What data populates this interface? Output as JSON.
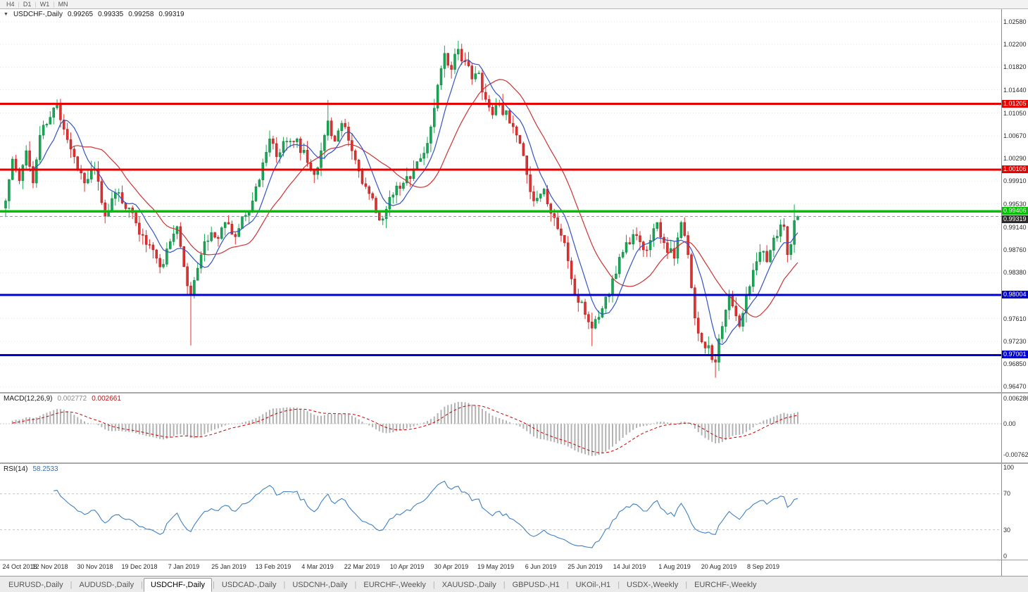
{
  "toolbar": {
    "timeframes": [
      "H4",
      "D1",
      "W1",
      "MN"
    ],
    "separator": "|"
  },
  "chart": {
    "title": {
      "collapse_icon": "▼",
      "symbol": "USDCHF-,Daily",
      "open": "0.99265",
      "high": "0.99335",
      "low": "0.99258",
      "close": "0.99319"
    },
    "price_axis_ticks": [
      "1.02580",
      "1.02200",
      "1.01820",
      "1.01440",
      "1.01050",
      "1.00670",
      "1.00290",
      "0.99910",
      "0.99530",
      "0.99140",
      "0.98760",
      "0.98380",
      "0.97610",
      "0.97230",
      "0.96850",
      "0.96470"
    ],
    "levels": [
      {
        "label": "1.01205",
        "price": 1.01205,
        "color": "#e80000",
        "type": "resistance"
      },
      {
        "label": "1.00106",
        "price": 1.00106,
        "color": "#e80000",
        "type": "resistance"
      },
      {
        "label": "0.99406",
        "price": 0.99406,
        "color": "#00c000",
        "type": "pivot"
      },
      {
        "label": "0.98004",
        "price": 0.98004,
        "color": "#0000cc",
        "type": "support"
      },
      {
        "label": "0.97001",
        "price": 0.97001,
        "color": "#0000cc",
        "type": "support"
      }
    ],
    "current_price": {
      "label": "0.99319",
      "price": 0.99319
    }
  },
  "macd": {
    "title": "MACD(12,26,9)",
    "value_main": "0.002772",
    "value_signal": "0.002661",
    "axis_labels": [
      "0.006286",
      "0.00",
      "-0.00762"
    ],
    "axis_values": [
      0.006286,
      0,
      -0.00762
    ]
  },
  "rsi": {
    "title": "RSI(14)",
    "value": "58.2533",
    "axis_labels": [
      "100",
      "70",
      "30",
      "0"
    ],
    "axis_values": [
      100,
      70,
      30,
      0
    ],
    "guide_levels": [
      70,
      30
    ]
  },
  "tabs": {
    "separator": "|",
    "active_index": 2,
    "items": [
      "EURUSD-,Daily",
      "AUDUSD-,Daily",
      "USDCHF-,Daily",
      "USDCAD-,Daily",
      "USDCNH-,Daily",
      "EURCHF-,Weekly",
      "XAUUSD-,Daily",
      "GBPUSD-,H1",
      "UKOil-,H1",
      "USDX-,Weekly",
      "EURCHF-,Weekly"
    ]
  },
  "chart_data": {
    "type": "candlestick",
    "title": "USDCHF-,Daily",
    "ylim": [
      0.9638,
      1.0279
    ],
    "candle_count": 232,
    "candles_per_label": 13,
    "x_date_labels": [
      "24 Oct 2018",
      "12 Nov 2018",
      "30 Nov 2018",
      "19 Dec 2018",
      "7 Jan 2019",
      "25 Jan 2019",
      "13 Feb 2019",
      "4 Mar 2019",
      "22 Mar 2019",
      "10 Apr 2019",
      "30 Apr 2019",
      "19 May 2019",
      "6 Jun 2019",
      "25 Jun 2019",
      "14 Jul 2019",
      "1 Aug 2019",
      "20 Aug 2019",
      "8 Sep 2019"
    ],
    "anchors_close": [
      [
        0,
        0.9958
      ],
      [
        2,
        1.0028
      ],
      [
        4,
        0.9992
      ],
      [
        6,
        1.0042
      ],
      [
        8,
        0.9988
      ],
      [
        10,
        1.0068
      ],
      [
        13,
        1.0098
      ],
      [
        15,
        1.0122
      ],
      [
        17,
        1.0078
      ],
      [
        20,
        1.0032
      ],
      [
        23,
        0.9988
      ],
      [
        26,
        1.0012
      ],
      [
        29,
        0.9932
      ],
      [
        31,
        0.9962
      ],
      [
        33,
        0.9972
      ],
      [
        35,
        0.9945
      ],
      [
        37,
        0.9938
      ],
      [
        39,
        0.9902
      ],
      [
        41,
        0.9885
      ],
      [
        44,
        0.9862
      ],
      [
        46,
        0.9852
      ],
      [
        48,
        0.989
      ],
      [
        50,
        0.9915
      ],
      [
        52,
        0.9848
      ],
      [
        54,
        0.98
      ],
      [
        55,
        0.9825
      ],
      [
        57,
        0.9868
      ],
      [
        60,
        0.9905
      ],
      [
        62,
        0.9895
      ],
      [
        64,
        0.9922
      ],
      [
        67,
        0.9898
      ],
      [
        69,
        0.9932
      ],
      [
        72,
        0.9958
      ],
      [
        75,
        1.0022
      ],
      [
        77,
        1.0062
      ],
      [
        79,
        1.0032
      ],
      [
        82,
        1.0058
      ],
      [
        85,
        1.0062
      ],
      [
        88,
        1.0022
      ],
      [
        90,
        1.0002
      ],
      [
        92,
        1.0042
      ],
      [
        94,
        1.0092
      ],
      [
        96,
        1.0058
      ],
      [
        98,
        1.0088
      ],
      [
        101,
        1.0042
      ],
      [
        103,
        1.0008
      ],
      [
        105,
        0.9982
      ],
      [
        108,
        0.9938
      ],
      [
        110,
        0.9928
      ],
      [
        113,
        0.9968
      ],
      [
        116,
        0.9988
      ],
      [
        119,
        1.0012
      ],
      [
        122,
        1.0038
      ],
      [
        124,
        1.0082
      ],
      [
        126,
        1.0152
      ],
      [
        128,
        1.0205
      ],
      [
        130,
        1.0178
      ],
      [
        132,
        1.0212
      ],
      [
        134,
        1.0192
      ],
      [
        136,
        1.0162
      ],
      [
        138,
        1.0172
      ],
      [
        140,
        1.0128
      ],
      [
        142,
        1.0102
      ],
      [
        144,
        1.0122
      ],
      [
        147,
        1.0088
      ],
      [
        149,
        1.0068
      ],
      [
        152,
        1.0002
      ],
      [
        154,
        0.9958
      ],
      [
        157,
        0.9978
      ],
      [
        160,
        0.993
      ],
      [
        163,
        0.9888
      ],
      [
        166,
        0.9802
      ],
      [
        169,
        0.9768
      ],
      [
        171,
        0.9745
      ],
      [
        174,
        0.9778
      ],
      [
        177,
        0.9828
      ],
      [
        180,
        0.9872
      ],
      [
        183,
        0.9902
      ],
      [
        186,
        0.9876
      ],
      [
        188,
        0.9892
      ],
      [
        190,
        0.9922
      ],
      [
        192,
        0.9888
      ],
      [
        195,
        0.9862
      ],
      [
        197,
        0.9922
      ],
      [
        199,
        0.9868
      ],
      [
        201,
        0.9762
      ],
      [
        203,
        0.9722
      ],
      [
        205,
        0.9716
      ],
      [
        207,
        0.9688
      ],
      [
        209,
        0.9748
      ],
      [
        211,
        0.9802
      ],
      [
        212,
        0.9782
      ],
      [
        214,
        0.9748
      ],
      [
        216,
        0.9802
      ],
      [
        218,
        0.9842
      ],
      [
        220,
        0.9872
      ],
      [
        222,
        0.9856
      ],
      [
        224,
        0.9896
      ],
      [
        226,
        0.9918
      ],
      [
        227,
        0.9915
      ],
      [
        228,
        0.9868
      ],
      [
        229,
        0.9885
      ],
      [
        230,
        0.9925
      ],
      [
        231,
        0.99319
      ]
    ],
    "wick_spikes": [
      {
        "i": 15,
        "high": 1.0128
      },
      {
        "i": 54,
        "low": 0.9716
      },
      {
        "i": 94,
        "high": 1.0127
      },
      {
        "i": 132,
        "high": 1.0226
      },
      {
        "i": 171,
        "low": 0.9715
      },
      {
        "i": 207,
        "low": 0.9662
      },
      {
        "i": 230,
        "high": 0.9952
      }
    ],
    "last_candle": {
      "open": 0.99265,
      "high": 0.99335,
      "low": 0.99258,
      "close": 0.99319
    },
    "ma_fast_period": 8,
    "ma_slow_period": 20,
    "macd_params": [
      12,
      26,
      9
    ],
    "rsi_period": 14,
    "macd_range": [
      0.0075,
      -0.0095
    ],
    "noise_seed": 11,
    "noise_amp": 0.001,
    "wick_amp": 0.0016
  },
  "colors": {
    "bull": "#18a855",
    "bull_border": "#0a7a3a",
    "bear": "#e03030",
    "bear_border": "#a31a1a",
    "ma_fast": "#3352c8",
    "ma_slow": "#cc3333",
    "level_red": "#e80000",
    "level_green": "#00c000",
    "level_blue": "#0000cc",
    "current_price_bg": "#2b2b2b",
    "current_price_line": "#9a9a9a",
    "grid": "#e6e6e6",
    "macd_hist": "#b2b2b2",
    "macd_signal": "#cc0000",
    "rsi_line": "#4080c0",
    "guide_dash": "#c8c8c8"
  }
}
